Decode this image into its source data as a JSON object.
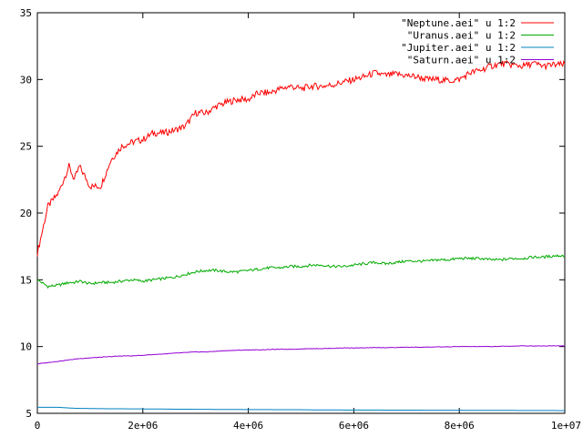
{
  "chart_data": {
    "type": "line",
    "title": "",
    "xlabel": "",
    "ylabel": "",
    "xlim": [
      0,
      10000000
    ],
    "ylim": [
      5,
      35
    ],
    "grid": false,
    "legend_position": "top-right",
    "x_ticks": [
      0,
      2000000,
      4000000,
      6000000,
      8000000,
      10000000
    ],
    "x_tick_labels": [
      "0",
      "2e+06",
      "4e+06",
      "6e+06",
      "8e+06",
      "1e+07"
    ],
    "y_ticks": [
      5,
      10,
      15,
      20,
      25,
      30,
      35
    ],
    "y_tick_labels": [
      "5",
      "10",
      "15",
      "20",
      "25",
      "30",
      "35"
    ],
    "x": [
      0,
      200000,
      400000,
      600000,
      700000,
      800000,
      1000000,
      1200000,
      1400000,
      1600000,
      1800000,
      2000000,
      2200000,
      2400000,
      2600000,
      2800000,
      3000000,
      3200000,
      3400000,
      3600000,
      3800000,
      4000000,
      4200000,
      4400000,
      4600000,
      4800000,
      5000000,
      5200000,
      5400000,
      5600000,
      5800000,
      6000000,
      6200000,
      6400000,
      6600000,
      6800000,
      7000000,
      7200000,
      7400000,
      7600000,
      7800000,
      8000000,
      8200000,
      8400000,
      8600000,
      8800000,
      9000000,
      9200000,
      9400000,
      9600000,
      9800000,
      10000000
    ],
    "series": [
      {
        "name": "\"Neptune.aei\" u 1:2",
        "color": "#ff0000",
        "values": [
          17.0,
          20.5,
          21.5,
          23.5,
          22.5,
          23.5,
          22.0,
          22.0,
          24.0,
          25.0,
          25.3,
          25.5,
          26.0,
          26.0,
          26.2,
          26.5,
          27.5,
          27.5,
          28.0,
          28.3,
          28.5,
          28.5,
          29.0,
          29.0,
          29.3,
          29.5,
          29.3,
          29.5,
          29.5,
          29.6,
          29.8,
          30.0,
          30.2,
          30.5,
          30.3,
          30.4,
          30.3,
          30.2,
          30.0,
          30.0,
          29.9,
          30.0,
          30.5,
          30.7,
          31.0,
          31.2,
          31.1,
          31.0,
          31.2,
          31.0,
          31.1,
          31.1
        ]
      },
      {
        "name": "\"Uranus.aei\" u 1:2",
        "color": "#00aa00",
        "values": [
          15.0,
          14.5,
          14.6,
          14.8,
          14.8,
          14.9,
          14.7,
          14.8,
          14.8,
          14.9,
          15.0,
          14.9,
          15.0,
          15.1,
          15.2,
          15.4,
          15.6,
          15.7,
          15.7,
          15.6,
          15.6,
          15.7,
          15.8,
          15.9,
          15.9,
          16.0,
          16.0,
          16.1,
          16.1,
          16.0,
          16.0,
          16.1,
          16.2,
          16.3,
          16.2,
          16.3,
          16.4,
          16.4,
          16.4,
          16.5,
          16.5,
          16.6,
          16.6,
          16.6,
          16.5,
          16.5,
          16.6,
          16.6,
          16.7,
          16.7,
          16.8,
          16.8
        ]
      },
      {
        "name": "\"Jupiter.aei\" u 1:2",
        "color": "#0080c0",
        "values": [
          5.45,
          5.45,
          5.45,
          5.4,
          5.38,
          5.37,
          5.36,
          5.35,
          5.34,
          5.34,
          5.33,
          5.33,
          5.32,
          5.32,
          5.31,
          5.31,
          5.3,
          5.3,
          5.29,
          5.29,
          5.29,
          5.28,
          5.28,
          5.28,
          5.27,
          5.27,
          5.27,
          5.26,
          5.26,
          5.26,
          5.25,
          5.25,
          5.25,
          5.25,
          5.24,
          5.24,
          5.24,
          5.24,
          5.23,
          5.23,
          5.23,
          5.23,
          5.22,
          5.22,
          5.22,
          5.22,
          5.22,
          5.21,
          5.21,
          5.21,
          5.21,
          5.2
        ]
      },
      {
        "name": "\"Saturn.aei\" u 1:2",
        "color": "#9400d3",
        "values": [
          8.7,
          8.8,
          8.9,
          9.0,
          9.05,
          9.1,
          9.15,
          9.2,
          9.25,
          9.3,
          9.3,
          9.35,
          9.4,
          9.45,
          9.5,
          9.55,
          9.6,
          9.6,
          9.65,
          9.7,
          9.72,
          9.75,
          9.75,
          9.78,
          9.8,
          9.8,
          9.82,
          9.85,
          9.85,
          9.87,
          9.9,
          9.9,
          9.9,
          9.92,
          9.92,
          9.93,
          9.95,
          9.95,
          9.96,
          9.97,
          9.98,
          10.0,
          10.0,
          10.0,
          10.0,
          10.02,
          10.03,
          10.05,
          10.05,
          10.05,
          10.06,
          10.06
        ]
      }
    ]
  }
}
